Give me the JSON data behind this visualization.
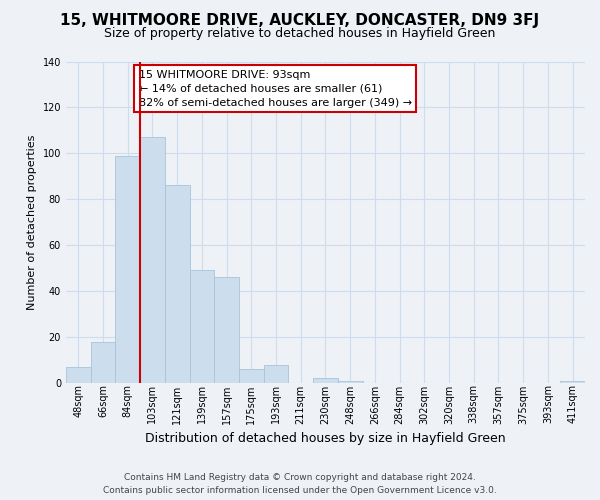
{
  "title": "15, WHITMOORE DRIVE, AUCKLEY, DONCASTER, DN9 3FJ",
  "subtitle": "Size of property relative to detached houses in Hayfield Green",
  "xlabel": "Distribution of detached houses by size in Hayfield Green",
  "ylabel": "Number of detached properties",
  "bar_labels": [
    "48sqm",
    "66sqm",
    "84sqm",
    "103sqm",
    "121sqm",
    "139sqm",
    "157sqm",
    "175sqm",
    "193sqm",
    "211sqm",
    "230sqm",
    "248sqm",
    "266sqm",
    "284sqm",
    "302sqm",
    "320sqm",
    "338sqm",
    "357sqm",
    "375sqm",
    "393sqm",
    "411sqm"
  ],
  "bar_values": [
    7,
    18,
    99,
    107,
    86,
    49,
    46,
    6,
    8,
    0,
    2,
    1,
    0,
    0,
    0,
    0,
    0,
    0,
    0,
    0,
    1
  ],
  "bar_color": "#ccdded",
  "bar_edge_color": "#a8c4d8",
  "grid_color": "#ccdded",
  "vline_x": 2.5,
  "vline_color": "#cc0000",
  "annotation_text": "15 WHITMOORE DRIVE: 93sqm\n← 14% of detached houses are smaller (61)\n82% of semi-detached houses are larger (349) →",
  "annotation_box_color": "white",
  "annotation_box_edge": "#cc0000",
  "ylim": [
    0,
    140
  ],
  "yticks": [
    0,
    20,
    40,
    60,
    80,
    100,
    120,
    140
  ],
  "footer_line1": "Contains HM Land Registry data © Crown copyright and database right 2024.",
  "footer_line2": "Contains public sector information licensed under the Open Government Licence v3.0.",
  "background_color": "#eef2f7",
  "title_fontsize": 11,
  "subtitle_fontsize": 9,
  "xlabel_fontsize": 9,
  "ylabel_fontsize": 8,
  "tick_fontsize": 7,
  "footer_fontsize": 6.5,
  "annot_fontsize": 8
}
